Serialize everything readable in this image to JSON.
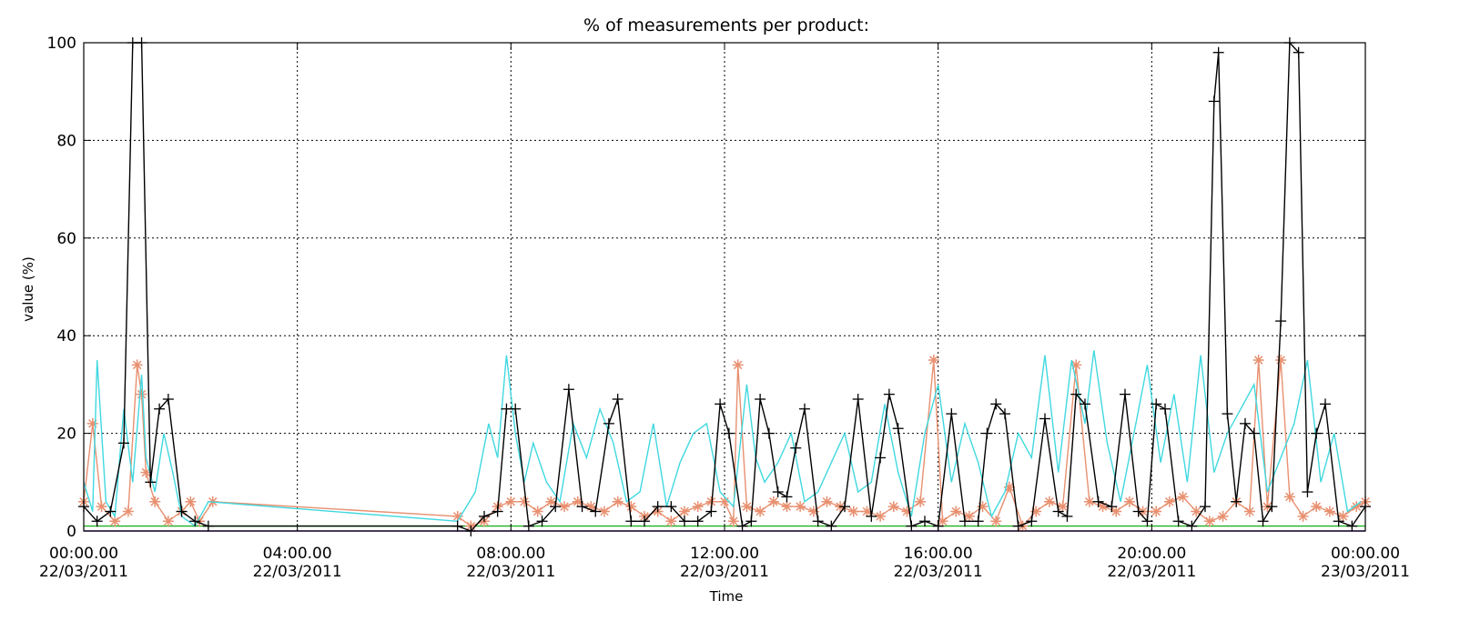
{
  "chart_data": {
    "type": "line",
    "title": "% of measurements per product:",
    "xlabel": "Time",
    "ylabel": "value (%)",
    "ylim": [
      0,
      100
    ],
    "xlim": [
      "22/03/2011 00:00",
      "23/03/2011 00:00"
    ],
    "grid": true,
    "y_ticks": [
      "0",
      "20",
      "40",
      "60",
      "80",
      "100"
    ],
    "x_ticks": [
      {
        "time": "00:00.00",
        "date": "22/03/2011"
      },
      {
        "time": "04:00.00",
        "date": "22/03/2011"
      },
      {
        "time": "08:00.00",
        "date": "22/03/2011"
      },
      {
        "time": "12:00.00",
        "date": "22/03/2011"
      },
      {
        "time": "16:00.00",
        "date": "22/03/2011"
      },
      {
        "time": "20:00.00",
        "date": "22/03/2011"
      },
      {
        "time": "00:00.00",
        "date": "23/03/2011"
      }
    ],
    "series": [
      {
        "color": "#000000",
        "marker": "+",
        "points": [
          [
            "00:00",
            5
          ],
          [
            "00:15",
            2
          ],
          [
            "00:30",
            4
          ],
          [
            "00:45",
            18
          ],
          [
            "00:55",
            100
          ],
          [
            "01:05",
            100
          ],
          [
            "01:15",
            10
          ],
          [
            "01:25",
            25
          ],
          [
            "01:35",
            27
          ],
          [
            "01:50",
            4
          ],
          [
            "02:05",
            2
          ],
          [
            "02:20",
            1
          ],
          [
            "07:00",
            1
          ],
          [
            "07:15",
            0
          ],
          [
            "07:30",
            3
          ],
          [
            "07:45",
            4
          ],
          [
            "07:55",
            25
          ],
          [
            "08:05",
            25
          ],
          [
            "08:20",
            1
          ],
          [
            "08:35",
            2
          ],
          [
            "08:50",
            5
          ],
          [
            "09:05",
            29
          ],
          [
            "09:20",
            5
          ],
          [
            "09:35",
            4
          ],
          [
            "09:50",
            22
          ],
          [
            "10:00",
            27
          ],
          [
            "10:15",
            2
          ],
          [
            "10:30",
            2
          ],
          [
            "10:45",
            5
          ],
          [
            "11:00",
            5
          ],
          [
            "11:15",
            2
          ],
          [
            "11:30",
            2
          ],
          [
            "11:45",
            4
          ],
          [
            "11:55",
            26
          ],
          [
            "12:05",
            20
          ],
          [
            "12:20",
            1
          ],
          [
            "12:30",
            2
          ],
          [
            "12:40",
            27
          ],
          [
            "12:50",
            20
          ],
          [
            "13:00",
            8
          ],
          [
            "13:10",
            7
          ],
          [
            "13:20",
            17
          ],
          [
            "13:30",
            25
          ],
          [
            "13:45",
            2
          ],
          [
            "14:00",
            1
          ],
          [
            "14:15",
            5
          ],
          [
            "14:30",
            27
          ],
          [
            "14:45",
            3
          ],
          [
            "14:55",
            15
          ],
          [
            "15:05",
            28
          ],
          [
            "15:15",
            21
          ],
          [
            "15:30",
            1
          ],
          [
            "15:45",
            2
          ],
          [
            "16:00",
            1
          ],
          [
            "16:15",
            24
          ],
          [
            "16:30",
            2
          ],
          [
            "16:45",
            2
          ],
          [
            "16:55",
            20
          ],
          [
            "17:05",
            26
          ],
          [
            "17:15",
            24
          ],
          [
            "17:30",
            1
          ],
          [
            "17:45",
            2
          ],
          [
            "18:00",
            23
          ],
          [
            "18:15",
            4
          ],
          [
            "18:25",
            3
          ],
          [
            "18:35",
            28
          ],
          [
            "18:45",
            26
          ],
          [
            "19:00",
            6
          ],
          [
            "19:15",
            5
          ],
          [
            "19:30",
            28
          ],
          [
            "19:45",
            4
          ],
          [
            "19:55",
            2
          ],
          [
            "20:05",
            26
          ],
          [
            "20:15",
            25
          ],
          [
            "20:30",
            2
          ],
          [
            "20:45",
            1
          ],
          [
            "21:00",
            5
          ],
          [
            "21:10",
            88
          ],
          [
            "21:15",
            98
          ],
          [
            "21:25",
            24
          ],
          [
            "21:35",
            6
          ],
          [
            "21:45",
            22
          ],
          [
            "21:55",
            20
          ],
          [
            "22:05",
            2
          ],
          [
            "22:15",
            5
          ],
          [
            "22:25",
            43
          ],
          [
            "22:35",
            100
          ],
          [
            "22:45",
            98
          ],
          [
            "22:55",
            8
          ],
          [
            "23:05",
            20
          ],
          [
            "23:15",
            26
          ],
          [
            "23:30",
            2
          ],
          [
            "23:45",
            1
          ],
          [
            "00:00",
            5
          ]
        ]
      },
      {
        "color": "#40d8e0",
        "marker": "none",
        "points": [
          [
            "00:00",
            10
          ],
          [
            "00:10",
            4
          ],
          [
            "00:15",
            35
          ],
          [
            "00:25",
            6
          ],
          [
            "00:35",
            3
          ],
          [
            "00:45",
            25
          ],
          [
            "00:55",
            10
          ],
          [
            "01:05",
            32
          ],
          [
            "01:10",
            15
          ],
          [
            "01:20",
            8
          ],
          [
            "01:30",
            20
          ],
          [
            "01:40",
            12
          ],
          [
            "01:50",
            3
          ],
          [
            "02:05",
            1
          ],
          [
            "02:20",
            6
          ],
          [
            "07:00",
            2
          ],
          [
            "07:20",
            8
          ],
          [
            "07:35",
            22
          ],
          [
            "07:45",
            15
          ],
          [
            "07:55",
            36
          ],
          [
            "08:05",
            20
          ],
          [
            "08:15",
            10
          ],
          [
            "08:25",
            18
          ],
          [
            "08:40",
            10
          ],
          [
            "08:55",
            6
          ],
          [
            "09:10",
            22
          ],
          [
            "09:25",
            15
          ],
          [
            "09:40",
            25
          ],
          [
            "09:55",
            18
          ],
          [
            "10:10",
            6
          ],
          [
            "10:25",
            8
          ],
          [
            "10:40",
            22
          ],
          [
            "10:55",
            5
          ],
          [
            "11:10",
            14
          ],
          [
            "11:25",
            20
          ],
          [
            "11:40",
            22
          ],
          [
            "11:55",
            8
          ],
          [
            "12:10",
            5
          ],
          [
            "12:25",
            30
          ],
          [
            "12:35",
            15
          ],
          [
            "12:45",
            10
          ],
          [
            "13:00",
            14
          ],
          [
            "13:15",
            20
          ],
          [
            "13:30",
            6
          ],
          [
            "13:45",
            8
          ],
          [
            "14:00",
            14
          ],
          [
            "14:15",
            20
          ],
          [
            "14:30",
            8
          ],
          [
            "14:45",
            10
          ],
          [
            "15:00",
            26
          ],
          [
            "15:15",
            12
          ],
          [
            "15:30",
            3
          ],
          [
            "15:45",
            20
          ],
          [
            "16:00",
            30
          ],
          [
            "16:15",
            10
          ],
          [
            "16:30",
            22
          ],
          [
            "16:45",
            14
          ],
          [
            "17:00",
            3
          ],
          [
            "17:15",
            8
          ],
          [
            "17:30",
            20
          ],
          [
            "17:45",
            15
          ],
          [
            "18:00",
            36
          ],
          [
            "18:15",
            12
          ],
          [
            "18:30",
            35
          ],
          [
            "18:45",
            22
          ],
          [
            "18:55",
            37
          ],
          [
            "19:10",
            18
          ],
          [
            "19:25",
            6
          ],
          [
            "19:40",
            20
          ],
          [
            "19:55",
            34
          ],
          [
            "20:10",
            14
          ],
          [
            "20:25",
            28
          ],
          [
            "20:40",
            10
          ],
          [
            "20:55",
            36
          ],
          [
            "21:10",
            12
          ],
          [
            "21:25",
            20
          ],
          [
            "21:40",
            25
          ],
          [
            "21:55",
            30
          ],
          [
            "22:10",
            8
          ],
          [
            "22:25",
            15
          ],
          [
            "22:40",
            22
          ],
          [
            "22:55",
            35
          ],
          [
            "23:10",
            10
          ],
          [
            "23:25",
            20
          ],
          [
            "23:40",
            4
          ],
          [
            "23:55",
            6
          ]
        ]
      },
      {
        "color": "#e89070",
        "marker": "*",
        "points": [
          [
            "00:00",
            6
          ],
          [
            "00:10",
            22
          ],
          [
            "00:20",
            5
          ],
          [
            "00:35",
            2
          ],
          [
            "00:50",
            4
          ],
          [
            "01:00",
            34
          ],
          [
            "01:05",
            28
          ],
          [
            "01:10",
            12
          ],
          [
            "01:20",
            6
          ],
          [
            "01:35",
            2
          ],
          [
            "01:50",
            4
          ],
          [
            "02:00",
            6
          ],
          [
            "02:10",
            2
          ],
          [
            "02:25",
            6
          ],
          [
            "07:00",
            3
          ],
          [
            "07:15",
            1
          ],
          [
            "07:30",
            2
          ],
          [
            "07:45",
            5
          ],
          [
            "08:00",
            6
          ],
          [
            "08:15",
            6
          ],
          [
            "08:30",
            4
          ],
          [
            "08:45",
            6
          ],
          [
            "09:00",
            5
          ],
          [
            "09:15",
            6
          ],
          [
            "09:30",
            5
          ],
          [
            "09:45",
            4
          ],
          [
            "10:00",
            6
          ],
          [
            "10:15",
            5
          ],
          [
            "10:30",
            3
          ],
          [
            "10:45",
            4
          ],
          [
            "11:00",
            2
          ],
          [
            "11:15",
            4
          ],
          [
            "11:30",
            5
          ],
          [
            "11:45",
            6
          ],
          [
            "12:00",
            6
          ],
          [
            "12:10",
            2
          ],
          [
            "12:15",
            34
          ],
          [
            "12:25",
            5
          ],
          [
            "12:40",
            4
          ],
          [
            "12:55",
            6
          ],
          [
            "13:10",
            5
          ],
          [
            "13:25",
            5
          ],
          [
            "13:40",
            4
          ],
          [
            "13:55",
            6
          ],
          [
            "14:10",
            5
          ],
          [
            "14:25",
            4
          ],
          [
            "14:40",
            4
          ],
          [
            "14:55",
            3
          ],
          [
            "15:10",
            5
          ],
          [
            "15:25",
            4
          ],
          [
            "15:40",
            6
          ],
          [
            "15:55",
            35
          ],
          [
            "16:05",
            2
          ],
          [
            "16:20",
            4
          ],
          [
            "16:35",
            3
          ],
          [
            "16:50",
            5
          ],
          [
            "17:05",
            2
          ],
          [
            "17:20",
            9
          ],
          [
            "17:35",
            1
          ],
          [
            "17:50",
            4
          ],
          [
            "18:05",
            6
          ],
          [
            "18:20",
            5
          ],
          [
            "18:35",
            34
          ],
          [
            "18:50",
            6
          ],
          [
            "19:05",
            5
          ],
          [
            "19:20",
            4
          ],
          [
            "19:35",
            6
          ],
          [
            "19:50",
            4
          ],
          [
            "20:05",
            4
          ],
          [
            "20:20",
            6
          ],
          [
            "20:35",
            7
          ],
          [
            "20:50",
            4
          ],
          [
            "21:05",
            2
          ],
          [
            "21:20",
            3
          ],
          [
            "21:35",
            6
          ],
          [
            "21:50",
            4
          ],
          [
            "22:00",
            35
          ],
          [
            "22:10",
            5
          ],
          [
            "22:25",
            35
          ],
          [
            "22:35",
            7
          ],
          [
            "22:50",
            3
          ],
          [
            "23:05",
            5
          ],
          [
            "23:20",
            4
          ],
          [
            "23:35",
            3
          ],
          [
            "23:50",
            5
          ],
          [
            "00:00",
            6
          ]
        ]
      },
      {
        "color": "#20b020",
        "marker": "none",
        "points": [
          [
            "00:00",
            1
          ],
          [
            "00:30",
            1
          ],
          [
            "01:00",
            1
          ],
          [
            "01:30",
            1
          ],
          [
            "02:00",
            1
          ],
          [
            "02:30",
            1
          ],
          [
            "07:00",
            1
          ],
          [
            "08:00",
            1
          ],
          [
            "09:00",
            1
          ],
          [
            "10:00",
            1
          ],
          [
            "11:00",
            1
          ],
          [
            "12:00",
            1
          ],
          [
            "13:00",
            1
          ],
          [
            "14:00",
            1
          ],
          [
            "15:00",
            1
          ],
          [
            "16:00",
            1
          ],
          [
            "17:00",
            1
          ],
          [
            "18:00",
            1
          ],
          [
            "19:00",
            1
          ],
          [
            "20:00",
            1
          ],
          [
            "21:00",
            1
          ],
          [
            "22:00",
            1
          ],
          [
            "23:00",
            1
          ],
          [
            "00:00",
            1
          ]
        ]
      },
      {
        "color": "#6a30b0",
        "marker": "none",
        "points": [
          [
            "00:00",
            0
          ],
          [
            "02:30",
            0
          ],
          [
            "07:00",
            0
          ],
          [
            "12:00",
            0
          ],
          [
            "18:00",
            0
          ],
          [
            "00:00",
            0
          ]
        ]
      }
    ]
  }
}
